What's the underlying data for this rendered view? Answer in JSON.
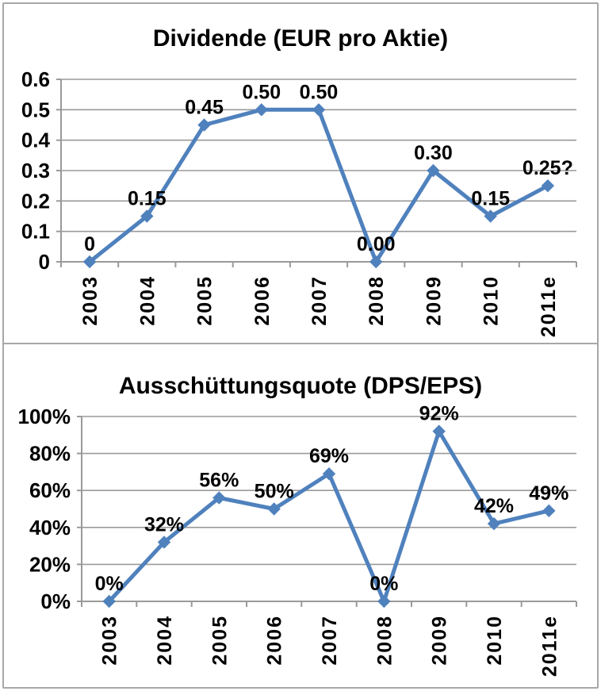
{
  "page": {
    "background": "#ffffff",
    "border_color": "#a8a8a8"
  },
  "colors": {
    "line": "#4F81BD",
    "grid": "#9a9a9a",
    "axis": "#9a9a9a",
    "text": "#000000"
  },
  "chart_data": [
    {
      "type": "line",
      "title": "Dividende (EUR pro Aktie)",
      "categories": [
        "2003",
        "2004",
        "2005",
        "2006",
        "2007",
        "2008",
        "2009",
        "2010",
        "2011e"
      ],
      "values": [
        0,
        0.15,
        0.45,
        0.5,
        0.5,
        0.0,
        0.3,
        0.15,
        0.25
      ],
      "point_labels": [
        "0",
        "0.15",
        "0.45",
        "0.50",
        "0.50",
        "0.00",
        "0.30",
        "0.15",
        "0.25?"
      ],
      "xlabel": "",
      "ylabel": "",
      "ylim": [
        0,
        0.6
      ],
      "yticks": [
        {
          "v": 0,
          "label": "0"
        },
        {
          "v": 0.1,
          "label": "0.1"
        },
        {
          "v": 0.2,
          "label": "0.2"
        },
        {
          "v": 0.3,
          "label": "0.3"
        },
        {
          "v": 0.4,
          "label": "0.4"
        },
        {
          "v": 0.5,
          "label": "0.5"
        },
        {
          "v": 0.6,
          "label": "0.6"
        }
      ],
      "grid": true,
      "legend": "none",
      "marker": "diamond"
    },
    {
      "type": "line",
      "title": "Ausschüttungsquote (DPS/EPS)",
      "categories": [
        "2003",
        "2004",
        "2005",
        "2006",
        "2007",
        "2008",
        "2009",
        "2010",
        "2011e"
      ],
      "values": [
        0,
        32,
        56,
        50,
        69,
        0,
        92,
        42,
        49
      ],
      "point_labels": [
        "0%",
        "32%",
        "56%",
        "50%",
        "69%",
        "0%",
        "92%",
        "42%",
        "49%"
      ],
      "xlabel": "",
      "ylabel": "",
      "ylim": [
        0,
        100
      ],
      "yticks": [
        {
          "v": 0,
          "label": "0%"
        },
        {
          "v": 20,
          "label": "20%"
        },
        {
          "v": 40,
          "label": "40%"
        },
        {
          "v": 60,
          "label": "60%"
        },
        {
          "v": 80,
          "label": "80%"
        },
        {
          "v": 100,
          "label": "100%"
        }
      ],
      "grid": true,
      "legend": "none",
      "marker": "diamond"
    }
  ]
}
